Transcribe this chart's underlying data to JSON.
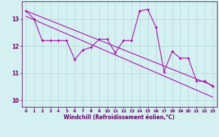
{
  "x": [
    0,
    1,
    2,
    3,
    4,
    5,
    6,
    7,
    8,
    9,
    10,
    11,
    12,
    13,
    14,
    15,
    16,
    17,
    18,
    19,
    20,
    21,
    22,
    23
  ],
  "windchill": [
    13.3,
    13.0,
    12.2,
    12.2,
    12.2,
    12.2,
    11.5,
    11.85,
    11.95,
    12.25,
    12.25,
    11.75,
    12.2,
    12.2,
    13.3,
    13.35,
    12.7,
    11.05,
    11.8,
    11.55,
    11.55,
    10.7,
    10.7,
    10.5
  ],
  "trend_upper": [
    13.3,
    13.18,
    13.06,
    12.94,
    12.82,
    12.7,
    12.58,
    12.46,
    12.34,
    12.22,
    12.1,
    11.98,
    11.86,
    11.74,
    11.62,
    11.5,
    11.38,
    11.26,
    11.14,
    11.02,
    10.9,
    10.78,
    10.66,
    10.54
  ],
  "trend_lower": [
    13.1,
    12.97,
    12.84,
    12.71,
    12.58,
    12.45,
    12.32,
    12.19,
    12.06,
    11.93,
    11.8,
    11.67,
    11.54,
    11.41,
    11.28,
    11.15,
    11.02,
    10.89,
    10.76,
    10.63,
    10.5,
    10.37,
    10.24,
    10.11
  ],
  "line_color": "#aa00aa",
  "trend_color": "#aa00aa",
  "bg_color": "#d4f0f0",
  "grid_color": "#b8dada",
  "axis_color": "#660066",
  "xlabel": "Windchill (Refroidissement éolien,°C)",
  "ylabel": "",
  "xlim": [
    -0.5,
    23.5
  ],
  "ylim": [
    9.75,
    13.65
  ],
  "yticks": [
    10,
    11,
    12,
    13
  ],
  "xticks": [
    0,
    1,
    2,
    3,
    4,
    5,
    6,
    7,
    8,
    9,
    10,
    11,
    12,
    13,
    14,
    15,
    16,
    17,
    18,
    19,
    20,
    21,
    22,
    23
  ]
}
